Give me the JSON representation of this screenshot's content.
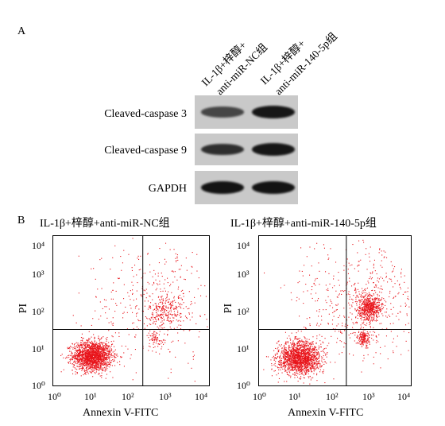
{
  "panel_a": {
    "letter": "A",
    "lanes": [
      {
        "line1": "IL-1β+梓醇+",
        "line2": "anti-miR-NC组"
      },
      {
        "line1": "IL-1β+梓醇+",
        "line2": "anti-miR-140-5p组"
      }
    ],
    "blots": [
      {
        "label": "Cleaved-caspase 3",
        "intensities": [
          0.55,
          0.95
        ]
      },
      {
        "label": "Cleaved-caspase 9",
        "intensities": [
          0.75,
          0.95
        ]
      },
      {
        "label": "GAPDH",
        "intensities": [
          0.98,
          0.98
        ]
      }
    ]
  },
  "panel_b": {
    "letter": "B",
    "xlabel": "Annexin V-FITC",
    "ylabel": "PI",
    "ticks": [
      "10⁰",
      "10¹",
      "10²",
      "10³",
      "10⁴"
    ],
    "plots": [
      {
        "title": "IL-1β+梓醇+anti-miR-NC组",
        "gate_x": 2.3,
        "gate_y": 1.5
      },
      {
        "title": "IL-1β+梓醇+anti-miR-140-5p组",
        "gate_x": 2.3,
        "gate_y": 1.5
      }
    ]
  },
  "colors": {
    "dots": "#e8141b",
    "band": "#111111",
    "strip": "#c9c9c9"
  }
}
